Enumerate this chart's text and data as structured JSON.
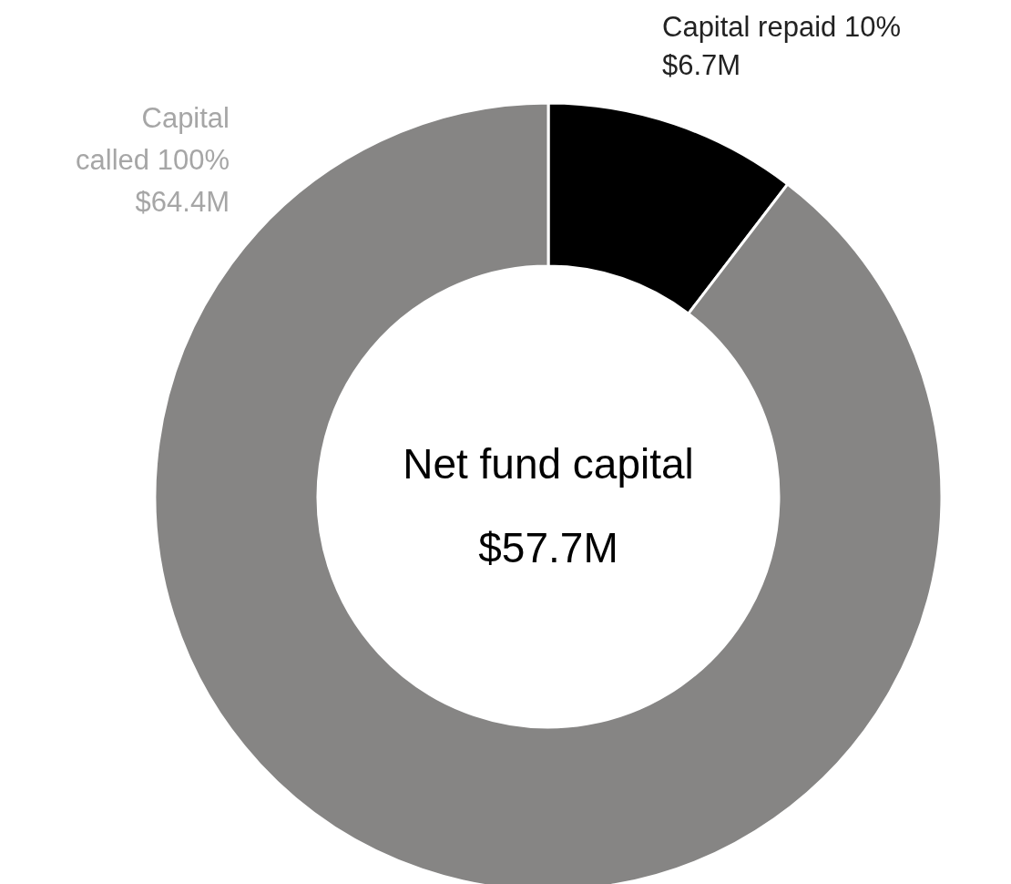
{
  "chart_data": {
    "type": "donut",
    "categories": [
      "Capital repaid 10%",
      "Net fund capital"
    ],
    "values": [
      6.7,
      57.7
    ],
    "value_labels": [
      "$6.7M",
      "$57.7M"
    ],
    "colors": [
      "#000000",
      "#868584"
    ],
    "annotations": [
      "Capital\ncalled 100%\n$64.4M"
    ]
  }
}
